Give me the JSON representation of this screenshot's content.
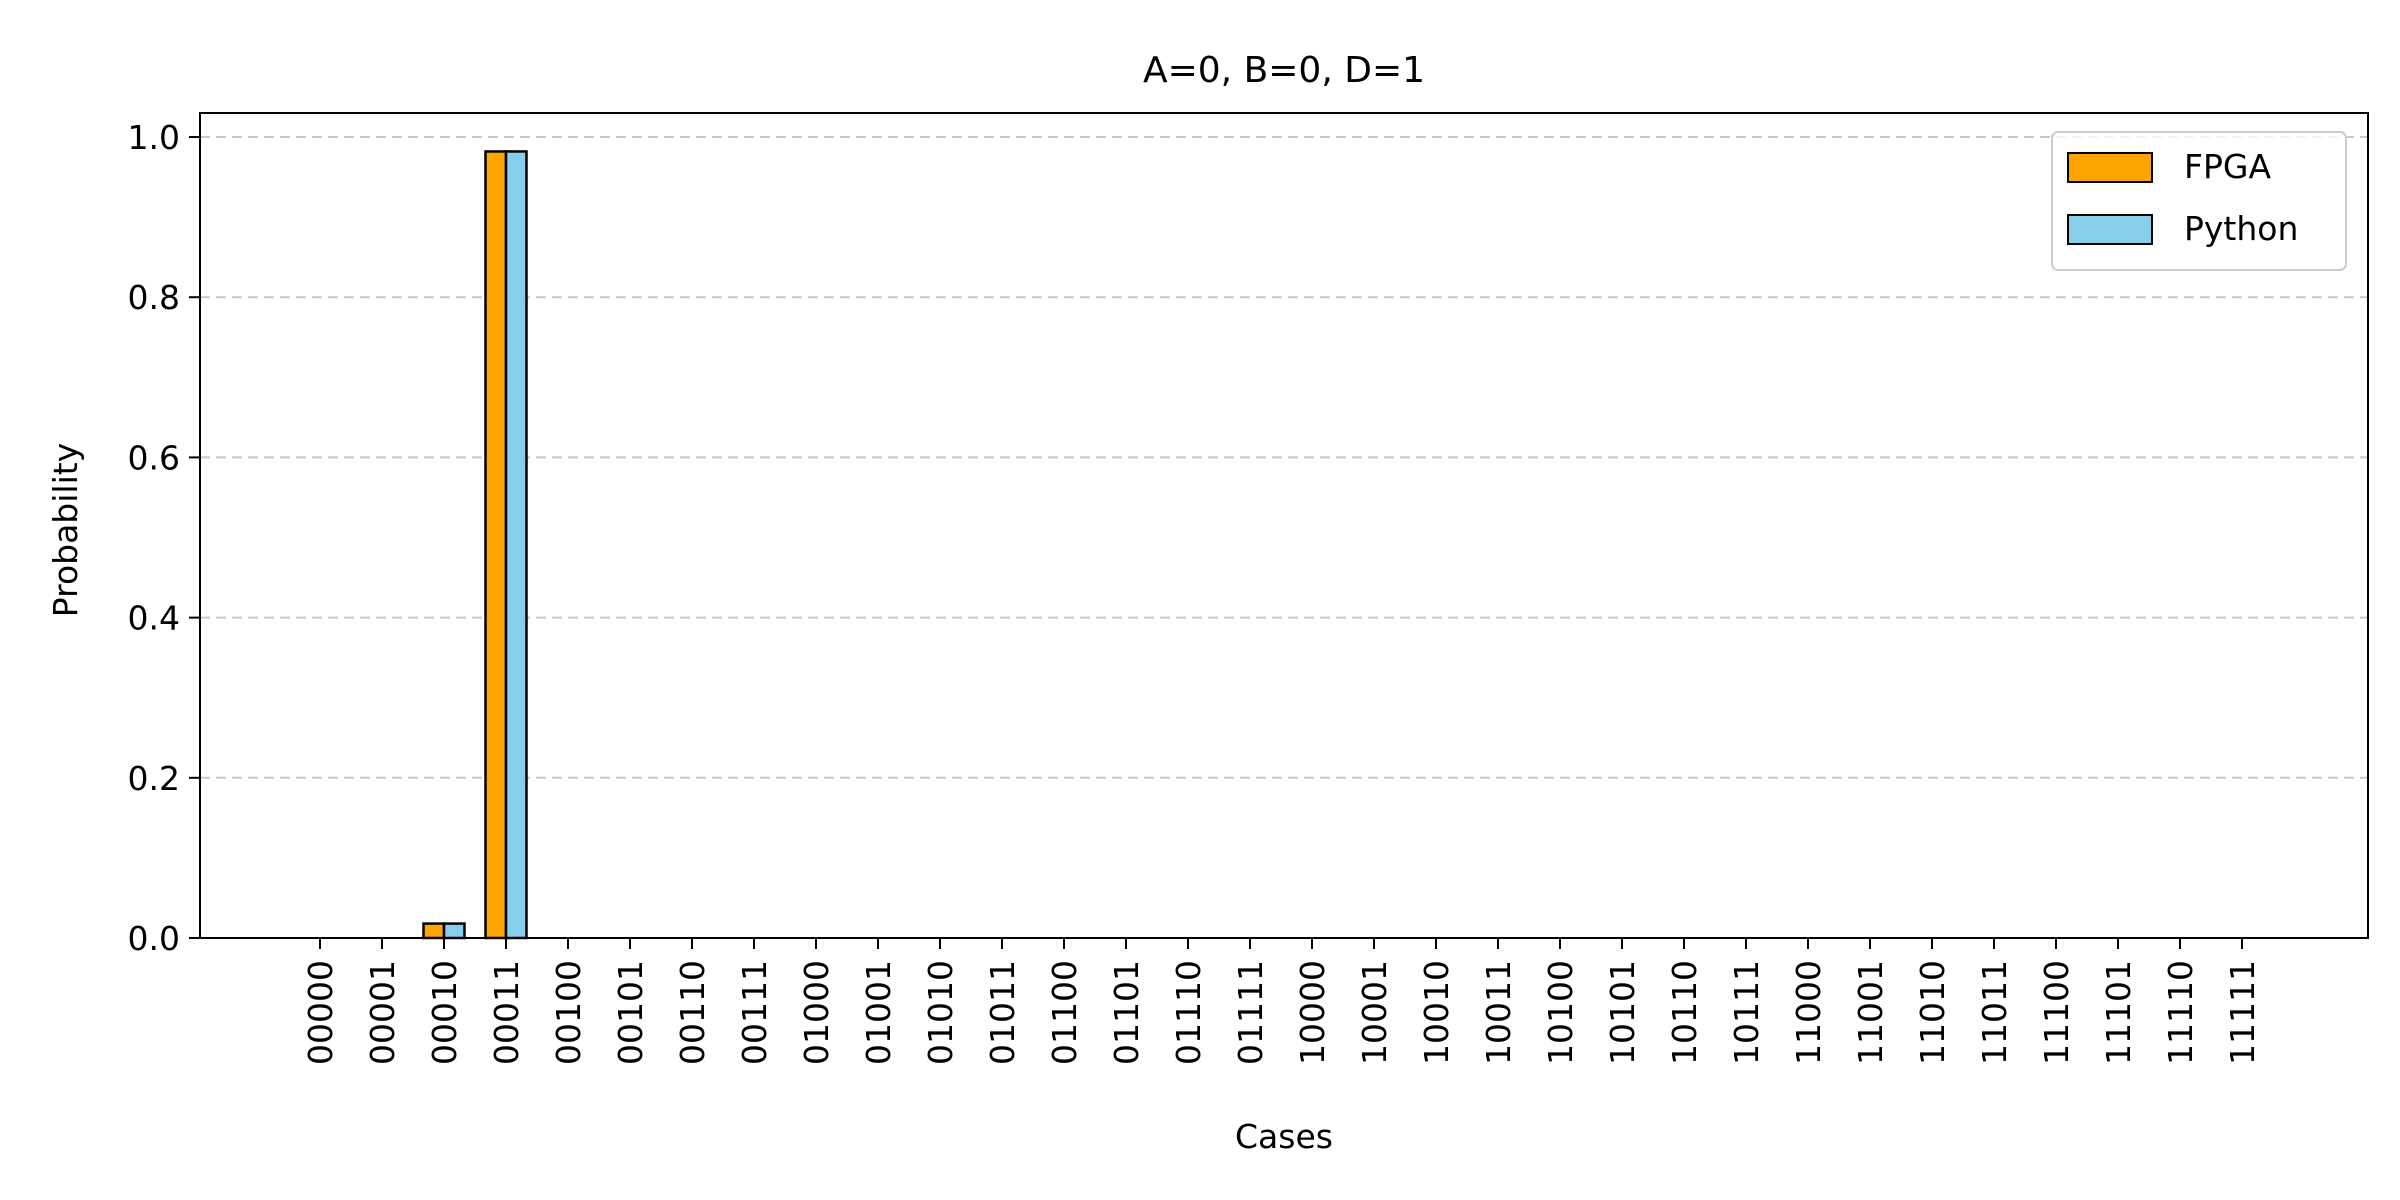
{
  "chart_data": {
    "type": "bar",
    "title": "A=0, B=0, D=1",
    "xlabel": "Cases",
    "ylabel": "Probability",
    "ylim": [
      0,
      1.03
    ],
    "yticks": [
      "0.0",
      "0.2",
      "0.4",
      "0.6",
      "0.8",
      "1.0"
    ],
    "grid": "y-dashed",
    "legend_position": "top-right",
    "categories": [
      "00000",
      "00001",
      "00010",
      "00011",
      "00100",
      "00101",
      "00110",
      "00111",
      "01000",
      "01001",
      "01010",
      "01011",
      "01100",
      "01101",
      "01110",
      "01111",
      "10000",
      "10001",
      "10010",
      "10011",
      "10100",
      "10101",
      "10110",
      "10111",
      "11000",
      "11001",
      "11010",
      "11011",
      "11100",
      "11101",
      "11110",
      "11111"
    ],
    "series": [
      {
        "name": "FPGA",
        "color": "#FFA500",
        "values": [
          0,
          0,
          0.018,
          0.982,
          0,
          0,
          0,
          0,
          0,
          0,
          0,
          0,
          0,
          0,
          0,
          0,
          0,
          0,
          0,
          0,
          0,
          0,
          0,
          0,
          0,
          0,
          0,
          0,
          0,
          0,
          0,
          0
        ]
      },
      {
        "name": "Python",
        "color": "#87CEEB",
        "values": [
          0,
          0,
          0.018,
          0.982,
          0,
          0,
          0,
          0,
          0,
          0,
          0,
          0,
          0,
          0,
          0,
          0,
          0,
          0,
          0,
          0,
          0,
          0,
          0,
          0,
          0,
          0,
          0,
          0,
          0,
          0,
          0,
          0
        ]
      }
    ]
  }
}
